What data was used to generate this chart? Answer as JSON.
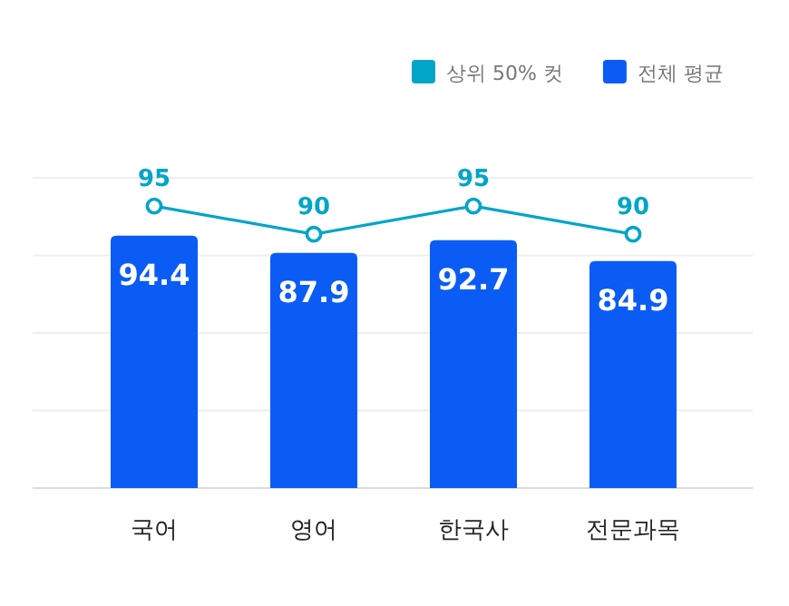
{
  "chart_data": {
    "type": "bar",
    "categories": [
      "국어",
      "영어",
      "한국사",
      "전문과목"
    ],
    "series": [
      {
        "name": "상위 50% 컷",
        "type": "line",
        "axis": "y2",
        "color": "#00a5c8",
        "values": [
          95,
          90,
          95,
          90
        ]
      },
      {
        "name": "전체 평균",
        "color": "#0b5cf5",
        "values": [
          94.4,
          87.9,
          92.7,
          84.9
        ]
      }
    ],
    "ylim": [
      0,
      116
    ],
    "yticks": [
      {
        "value": 0,
        "label": null
      },
      {
        "value": 29,
        "label": null
      },
      {
        "value": 58,
        "label": null
      },
      {
        "value": 87,
        "label": null
      },
      {
        "value": 116,
        "label": null
      }
    ],
    "y2lim": [
      45,
      100
    ],
    "marker": "circle",
    "data_labels": true,
    "grid": "y",
    "legend": "top right",
    "tick_labels": "x"
  }
}
